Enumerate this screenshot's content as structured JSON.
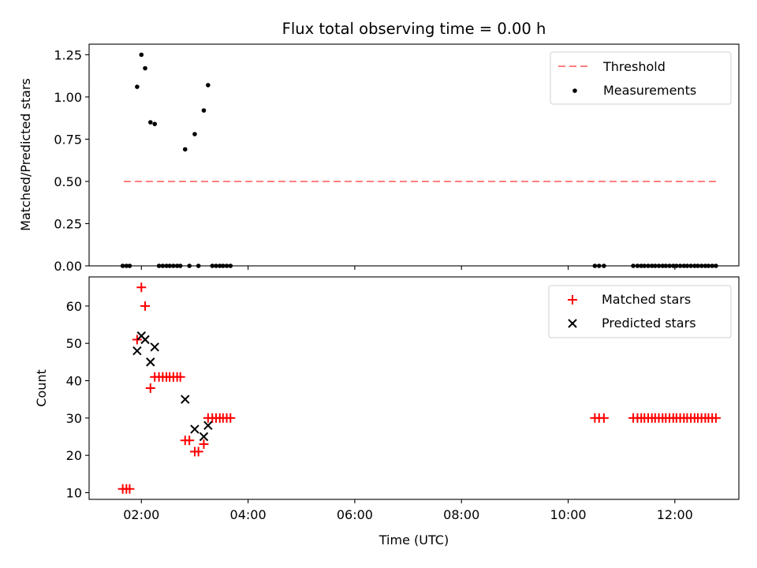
{
  "chart_data": [
    {
      "type": "scatter",
      "title": "Flux total observing time = 0.00 h",
      "xlabel": "",
      "ylabel": "Matched/Predicted stars",
      "ylim": [
        0,
        1.3125
      ],
      "yticks": [
        0.0,
        0.25,
        0.5,
        0.75,
        1.0,
        1.25
      ],
      "ytick_labels": [
        "0.00",
        "0.25",
        "0.50",
        "0.75",
        "1.00",
        "1.25"
      ],
      "xlim_hours": [
        1.02,
        13.2
      ],
      "xticks_hours": [
        2,
        4,
        6,
        8,
        10,
        12
      ],
      "legend_position": "upper right",
      "threshold": {
        "name": "Threshold",
        "value": 0.5,
        "x_start": 1.67,
        "x_end": 12.77,
        "color": "#ff7f7f",
        "style": "dashed"
      },
      "series": [
        {
          "name": "Measurements",
          "color": "#000000",
          "marker": "dot",
          "x": [
            1.65,
            1.72,
            1.78,
            1.92,
            2.0,
            2.07,
            2.17,
            2.25,
            2.33,
            2.4,
            2.47,
            2.53,
            2.6,
            2.67,
            2.73,
            2.82,
            2.9,
            3.0,
            3.07,
            3.17,
            3.25,
            3.33,
            3.4,
            3.47,
            3.53,
            3.6,
            3.67,
            10.5,
            10.58,
            10.67,
            11.22,
            11.3,
            11.37,
            11.43,
            11.5,
            11.57,
            11.63,
            11.7,
            11.77,
            11.83,
            11.9,
            11.97,
            12.03,
            12.1,
            12.17,
            12.23,
            12.3,
            12.37,
            12.43,
            12.5,
            12.57,
            12.63,
            12.7,
            12.77
          ],
          "y": [
            0,
            0,
            0,
            1.06,
            1.25,
            1.17,
            0.85,
            0.84,
            0,
            0,
            0,
            0,
            0,
            0,
            0,
            0.69,
            0,
            0.78,
            0,
            0.92,
            1.07,
            0,
            0,
            0,
            0,
            0,
            0,
            0,
            0,
            0,
            0,
            0,
            0,
            0,
            0,
            0,
            0,
            0,
            0,
            0,
            0,
            0,
            0,
            0,
            0,
            0,
            0,
            0,
            0,
            0,
            0,
            0,
            0,
            0
          ]
        }
      ]
    },
    {
      "type": "scatter",
      "title": "",
      "xlabel": "Time (UTC)",
      "ylabel": "Count",
      "ylim": [
        8.2,
        67.8
      ],
      "yticks": [
        10,
        20,
        30,
        40,
        50,
        60
      ],
      "ytick_labels": [
        "10",
        "20",
        "30",
        "40",
        "50",
        "60"
      ],
      "xlim_hours": [
        1.02,
        13.2
      ],
      "xticks_hours": [
        2,
        4,
        6,
        8,
        10,
        12
      ],
      "xtick_labels": [
        "02:00",
        "04:00",
        "06:00",
        "08:00",
        "10:00",
        "12:00"
      ],
      "legend_position": "upper right",
      "series": [
        {
          "name": "Matched stars",
          "color": "#ff0000",
          "marker": "plus",
          "x": [
            1.65,
            1.72,
            1.78,
            1.92,
            2.0,
            2.07,
            2.17,
            2.25,
            2.33,
            2.4,
            2.47,
            2.53,
            2.6,
            2.67,
            2.73,
            2.82,
            2.9,
            3.0,
            3.07,
            3.17,
            3.25,
            3.33,
            3.4,
            3.47,
            3.53,
            3.6,
            3.67,
            10.5,
            10.58,
            10.67,
            11.22,
            11.3,
            11.37,
            11.43,
            11.5,
            11.57,
            11.63,
            11.7,
            11.77,
            11.83,
            11.9,
            11.97,
            12.03,
            12.1,
            12.17,
            12.23,
            12.3,
            12.37,
            12.43,
            12.5,
            12.57,
            12.63,
            12.7,
            12.77
          ],
          "y": [
            11,
            11,
            11,
            51,
            65,
            60,
            38,
            41,
            41,
            41,
            41,
            41,
            41,
            41,
            41,
            24,
            24,
            21,
            21,
            23,
            30,
            30,
            30,
            30,
            30,
            30,
            30,
            30,
            30,
            30,
            30,
            30,
            30,
            30,
            30,
            30,
            30,
            30,
            30,
            30,
            30,
            30,
            30,
            30,
            30,
            30,
            30,
            30,
            30,
            30,
            30,
            30,
            30,
            30
          ]
        },
        {
          "name": "Predicted stars",
          "color": "#000000",
          "marker": "x",
          "x": [
            1.92,
            2.0,
            2.07,
            2.17,
            2.25,
            2.82,
            3.0,
            3.17,
            3.25
          ],
          "y": [
            48,
            52,
            51,
            45,
            49,
            35,
            27,
            25,
            28
          ]
        }
      ]
    }
  ]
}
